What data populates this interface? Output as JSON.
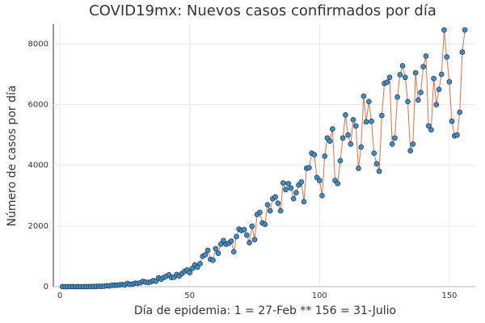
{
  "chart_data": {
    "type": "line",
    "title": "COVID19mx: Nuevos casos confirmados por día",
    "xlabel": "Día de epidemia: 1 = 27-Feb ** 156 = 31-Julio",
    "ylabel": "Número de casos por día",
    "x": [
      1,
      2,
      3,
      4,
      5,
      6,
      7,
      8,
      9,
      10,
      11,
      12,
      13,
      14,
      15,
      16,
      17,
      18,
      19,
      20,
      21,
      22,
      23,
      24,
      25,
      26,
      27,
      28,
      29,
      30,
      31,
      32,
      33,
      34,
      35,
      36,
      37,
      38,
      39,
      40,
      41,
      42,
      43,
      44,
      45,
      46,
      47,
      48,
      49,
      50,
      51,
      52,
      53,
      54,
      55,
      56,
      57,
      58,
      59,
      60,
      61,
      62,
      63,
      64,
      65,
      66,
      67,
      68,
      69,
      70,
      71,
      72,
      73,
      74,
      75,
      76,
      77,
      78,
      79,
      80,
      81,
      82,
      83,
      84,
      85,
      86,
      87,
      88,
      89,
      90,
      91,
      92,
      93,
      94,
      95,
      96,
      97,
      98,
      99,
      100,
      101,
      102,
      103,
      104,
      105,
      106,
      107,
      108,
      109,
      110,
      111,
      112,
      113,
      114,
      115,
      116,
      117,
      118,
      119,
      120,
      121,
      122,
      123,
      124,
      125,
      126,
      127,
      128,
      129,
      130,
      131,
      132,
      133,
      134,
      135,
      136,
      137,
      138,
      139,
      140,
      141,
      142,
      143,
      144,
      145,
      146,
      147,
      148,
      149,
      150,
      151,
      152,
      153,
      154,
      155,
      156
    ],
    "values": [
      1,
      0,
      0,
      1,
      1,
      0,
      1,
      0,
      0,
      1,
      2,
      4,
      5,
      7,
      12,
      11,
      15,
      29,
      26,
      41,
      48,
      47,
      59,
      71,
      52,
      110,
      75,
      82,
      115,
      108,
      130,
      175,
      150,
      135,
      160,
      200,
      176,
      290,
      250,
      300,
      340,
      390,
      300,
      310,
      400,
      350,
      430,
      500,
      550,
      460,
      600,
      720,
      640,
      760,
      1000,
      1050,
      1200,
      900,
      870,
      1250,
      1100,
      1400,
      1520,
      1400,
      1430,
      1500,
      1150,
      1650,
      1900,
      1850,
      1880,
      1700,
      1450,
      1990,
      1550,
      2380,
      2450,
      2100,
      2050,
      2700,
      2500,
      2900,
      2960,
      2750,
      2500,
      3420,
      3200,
      3400,
      3250,
      2900,
      3100,
      3350,
      3450,
      2800,
      3900,
      3920,
      4400,
      4350,
      3600,
      3500,
      3000,
      4300,
      4900,
      4800,
      5200,
      3500,
      3400,
      4150,
      4900,
      5660,
      5000,
      4700,
      5500,
      5300,
      3900,
      4600,
      6280,
      5430,
      6100,
      5450,
      4400,
      4050,
      3800,
      5640,
      6700,
      6740,
      6900,
      4700,
      4900,
      6250,
      6990,
      7280,
      6900,
      6100,
      4480,
      4700,
      7050,
      6150,
      6400,
      7250,
      7600,
      5300,
      5170,
      6860,
      6000,
      6500,
      7000,
      8458,
      7570,
      6750,
      5450,
      4970,
      5000,
      5750,
      7730,
      8458
    ],
    "line_color": "#e26f46",
    "marker_color": "#3a8fc9",
    "xlim": [
      -2.5,
      160
    ],
    "ylim": [
      0,
      8650
    ],
    "xticks": [
      0,
      50,
      100,
      150
    ],
    "yticks": [
      0,
      2000,
      4000,
      6000,
      8000
    ],
    "grid": true
  }
}
